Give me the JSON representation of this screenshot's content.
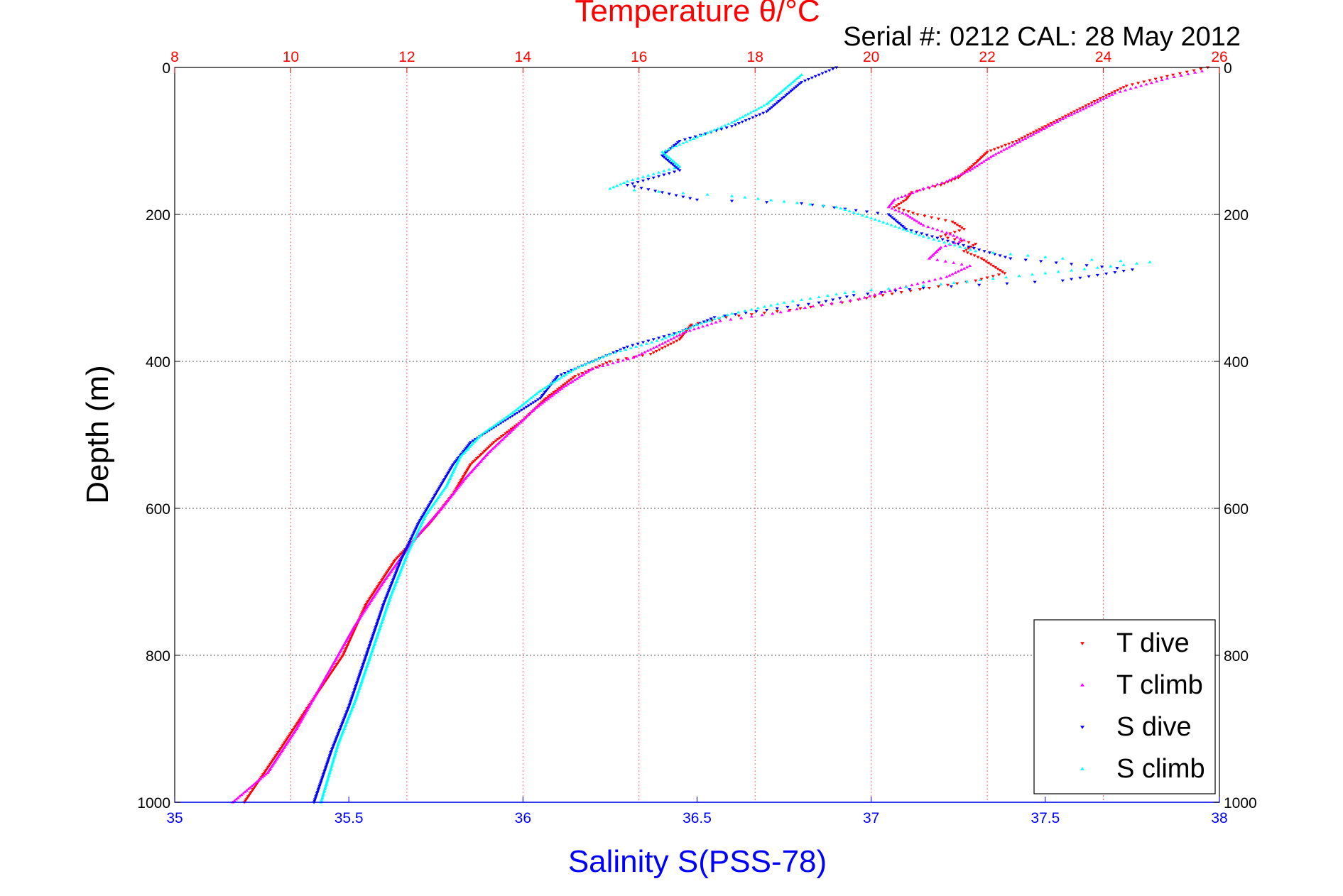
{
  "chart_data": {
    "type": "scatter",
    "title": "Temperature θ/°C",
    "subtitle": "Serial #: 0212  CAL: 28 May 2012",
    "ylabel": "Depth (m)",
    "x2label": "Salinity S(PSS-78)",
    "ylim": [
      0,
      1000
    ],
    "y_reversed": true,
    "temperature_axis": {
      "position": "top",
      "range": [
        8,
        26
      ],
      "ticks": [
        8,
        10,
        12,
        14,
        16,
        18,
        20,
        22,
        24,
        26
      ],
      "color": "#ff0000"
    },
    "salinity_axis": {
      "position": "bottom",
      "range": [
        35,
        38
      ],
      "ticks": [
        35,
        35.5,
        36,
        36.5,
        37,
        37.5,
        38
      ],
      "color": "#0000ff"
    },
    "depth_ticks": [
      0,
      200,
      400,
      600,
      800,
      1000
    ],
    "grid": true,
    "legend": {
      "placement": "bottom-right",
      "entries": [
        "T dive",
        "T climb",
        "S dive",
        "S climb"
      ]
    },
    "series": [
      {
        "name": "T dive",
        "variable": "temperature",
        "marker": "triangle-down",
        "color": "#ff0000",
        "points": [
          [
            25.8,
            0
          ],
          [
            25.2,
            10
          ],
          [
            24.4,
            25
          ],
          [
            24,
            40
          ],
          [
            23.5,
            60
          ],
          [
            23,
            80
          ],
          [
            22.5,
            100
          ],
          [
            22,
            115
          ],
          [
            21.8,
            130
          ],
          [
            21.5,
            150
          ],
          [
            21.2,
            160
          ],
          [
            20.7,
            170
          ],
          [
            20.6,
            180
          ],
          [
            20.4,
            190
          ],
          [
            20.8,
            200
          ],
          [
            21.4,
            210
          ],
          [
            21.6,
            220
          ],
          [
            21.2,
            230
          ],
          [
            21.8,
            240
          ],
          [
            21.6,
            250
          ],
          [
            21.9,
            260
          ],
          [
            22.1,
            270
          ],
          [
            22.3,
            280
          ],
          [
            21.8,
            290
          ],
          [
            21,
            300
          ],
          [
            20.2,
            310
          ],
          [
            19.5,
            320
          ],
          [
            18.6,
            330
          ],
          [
            17.5,
            340
          ],
          [
            16.9,
            350
          ],
          [
            16.7,
            370
          ],
          [
            16.2,
            390
          ],
          [
            15.5,
            400
          ],
          [
            14.9,
            420
          ],
          [
            14.4,
            450
          ],
          [
            14,
            480
          ],
          [
            13.5,
            510
          ],
          [
            13.1,
            540
          ],
          [
            12.8,
            580
          ],
          [
            12.4,
            620
          ],
          [
            11.8,
            670
          ],
          [
            11.3,
            730
          ],
          [
            10.9,
            800
          ],
          [
            10.3,
            870
          ],
          [
            9.8,
            930
          ],
          [
            9.2,
            1000
          ]
        ]
      },
      {
        "name": "T climb",
        "variable": "temperature",
        "marker": "triangle-up",
        "color": "#ff00ff",
        "points": [
          [
            25.7,
            5
          ],
          [
            25.1,
            15
          ],
          [
            24.2,
            35
          ],
          [
            23.7,
            55
          ],
          [
            23.3,
            70
          ],
          [
            22.7,
            95
          ],
          [
            22.1,
            120
          ],
          [
            21.7,
            140
          ],
          [
            21.3,
            155
          ],
          [
            20.9,
            165
          ],
          [
            20.4,
            180
          ],
          [
            20.3,
            190
          ],
          [
            20.6,
            200
          ],
          [
            20.9,
            215
          ],
          [
            21.3,
            225
          ],
          [
            21.6,
            235
          ],
          [
            21.2,
            245
          ],
          [
            21,
            260
          ],
          [
            21.7,
            270
          ],
          [
            21.3,
            285
          ],
          [
            20.5,
            300
          ],
          [
            19.8,
            315
          ],
          [
            19,
            325
          ],
          [
            18.3,
            335
          ],
          [
            17.4,
            345
          ],
          [
            16.8,
            360
          ],
          [
            16.3,
            380
          ],
          [
            15.9,
            395
          ],
          [
            15.2,
            410
          ],
          [
            14.7,
            435
          ],
          [
            14.2,
            465
          ],
          [
            13.8,
            495
          ],
          [
            13.4,
            525
          ],
          [
            13,
            560
          ],
          [
            12.6,
            600
          ],
          [
            12.1,
            645
          ],
          [
            11.6,
            700
          ],
          [
            11.1,
            760
          ],
          [
            10.6,
            830
          ],
          [
            10.1,
            900
          ],
          [
            9.6,
            960
          ],
          [
            9,
            1000
          ]
        ]
      },
      {
        "name": "S dive",
        "variable": "salinity",
        "marker": "triangle-down",
        "color": "#0000ff",
        "points": [
          [
            36.9,
            0
          ],
          [
            36.8,
            20
          ],
          [
            36.75,
            40
          ],
          [
            36.7,
            60
          ],
          [
            36.6,
            80
          ],
          [
            36.45,
            100
          ],
          [
            36.4,
            120
          ],
          [
            36.45,
            140
          ],
          [
            36.3,
            160
          ],
          [
            36.5,
            180
          ],
          [
            36.8,
            185
          ],
          [
            37.05,
            200
          ],
          [
            37.1,
            220
          ],
          [
            37.25,
            240
          ],
          [
            37.4,
            260
          ],
          [
            37.75,
            275
          ],
          [
            37.55,
            290
          ],
          [
            37.15,
            300
          ],
          [
            36.95,
            310
          ],
          [
            36.85,
            320
          ],
          [
            36.7,
            330
          ],
          [
            36.55,
            340
          ],
          [
            36.45,
            360
          ],
          [
            36.3,
            380
          ],
          [
            36.2,
            400
          ],
          [
            36.1,
            420
          ],
          [
            36.05,
            450
          ],
          [
            35.95,
            480
          ],
          [
            35.85,
            510
          ],
          [
            35.8,
            540
          ],
          [
            35.75,
            580
          ],
          [
            35.7,
            620
          ],
          [
            35.65,
            670
          ],
          [
            35.6,
            730
          ],
          [
            35.55,
            800
          ],
          [
            35.5,
            870
          ],
          [
            35.45,
            930
          ],
          [
            35.4,
            1000
          ]
        ]
      },
      {
        "name": "S climb",
        "variable": "salinity",
        "marker": "triangle-up",
        "color": "#00ffff",
        "points": [
          [
            36.8,
            10
          ],
          [
            36.75,
            30
          ],
          [
            36.7,
            50
          ],
          [
            36.6,
            75
          ],
          [
            36.5,
            95
          ],
          [
            36.4,
            115
          ],
          [
            36.45,
            135
          ],
          [
            36.3,
            155
          ],
          [
            36.25,
            165
          ],
          [
            36.6,
            175
          ],
          [
            36.9,
            190
          ],
          [
            37,
            205
          ],
          [
            37.15,
            230
          ],
          [
            37.3,
            250
          ],
          [
            37.55,
            260
          ],
          [
            37.8,
            265
          ],
          [
            37.5,
            280
          ],
          [
            37.2,
            295
          ],
          [
            36.95,
            305
          ],
          [
            36.75,
            320
          ],
          [
            36.6,
            335
          ],
          [
            36.5,
            350
          ],
          [
            36.4,
            370
          ],
          [
            36.25,
            390
          ],
          [
            36.15,
            410
          ],
          [
            36.05,
            440
          ],
          [
            35.97,
            470
          ],
          [
            35.88,
            500
          ],
          [
            35.82,
            530
          ],
          [
            35.78,
            570
          ],
          [
            35.72,
            610
          ],
          [
            35.67,
            660
          ],
          [
            35.62,
            720
          ],
          [
            35.57,
            790
          ],
          [
            35.52,
            860
          ],
          [
            35.47,
            920
          ],
          [
            35.42,
            1000
          ]
        ]
      }
    ]
  }
}
